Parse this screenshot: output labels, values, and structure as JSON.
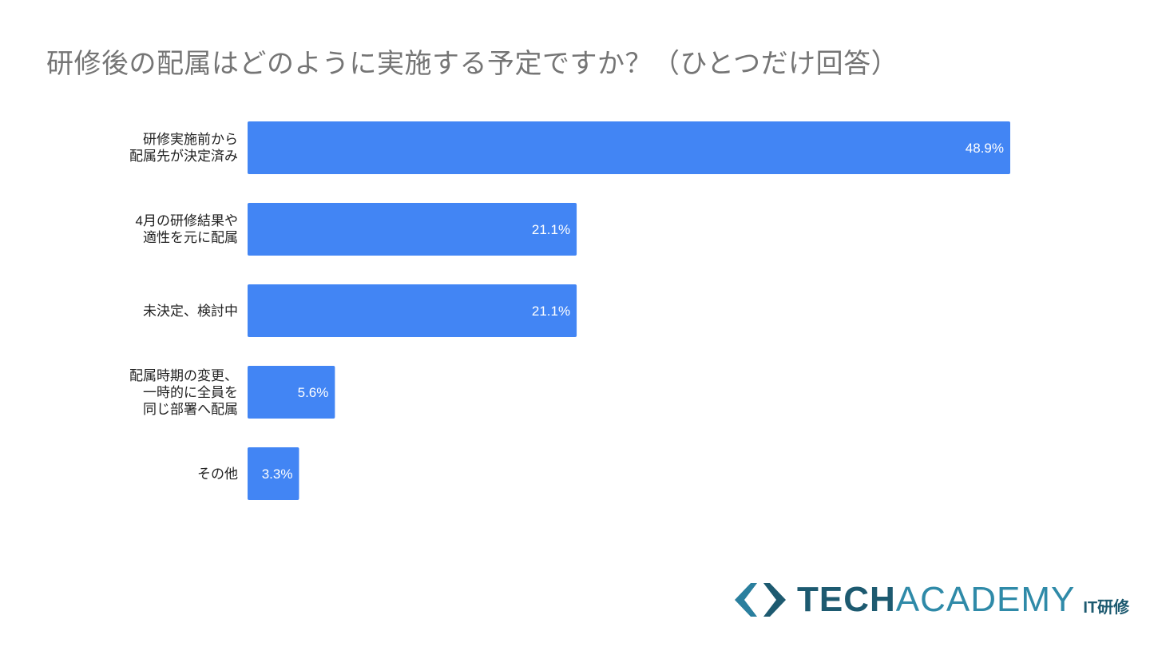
{
  "chart_data": {
    "type": "bar",
    "orientation": "horizontal",
    "title": "研修後の配属はどのように実施する予定ですか？（ひとつだけ回答）",
    "categories": [
      [
        "研修実施前から",
        "配属先が決定済み"
      ],
      [
        "4月の研修結果や",
        "適性を元に配属"
      ],
      [
        "未決定、検討中"
      ],
      [
        "配属時期の変更、",
        "一時的に全員を",
        "同じ部署へ配属"
      ],
      [
        "その他"
      ]
    ],
    "values": [
      48.9,
      21.1,
      21.1,
      5.6,
      3.3
    ],
    "value_labels": [
      "48.9%",
      "21.1%",
      "21.1%",
      "5.6%",
      "3.3%"
    ],
    "unit": "%",
    "xlim": [
      0,
      48.9
    ],
    "grid": false,
    "bar_color": "#4285f4",
    "xlabel": "",
    "ylabel": ""
  },
  "logo": {
    "tech": "TECH",
    "academy": "ACADEMY",
    "sub": "IT研修"
  }
}
